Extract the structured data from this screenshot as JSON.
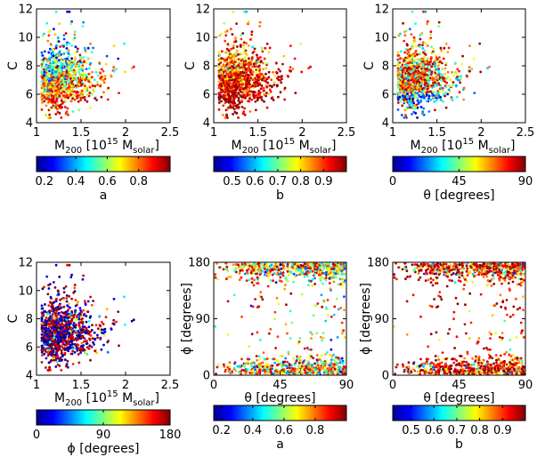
{
  "chart_data": [
    {
      "type": "scatter",
      "panel": "top-left",
      "xlabel": "M",
      "xlabel_sub": "200",
      "xlabel_unit_prefix": "[10",
      "xlabel_unit_exp": "15",
      "xlabel_unit_m": "M",
      "xlabel_unit_sub": "solar",
      "xlabel_unit_end": "]",
      "ylabel": "C",
      "xlim": [
        1,
        2.5
      ],
      "ylim": [
        4,
        12
      ],
      "xticks": [
        "1",
        "1.5",
        "2",
        "2.5"
      ],
      "yticks": [
        "4",
        "6",
        "8",
        "10",
        "12"
      ],
      "color_variable": "a",
      "colorbar_label": "a",
      "colorbar_range": [
        0.15,
        1.0
      ],
      "colorbar_ticks": [
        "0.2",
        "0.4",
        "0.6",
        "0.8"
      ],
      "colorbar_tick_values": [
        0.2,
        0.4,
        0.6,
        0.8
      ],
      "n_points": 900,
      "trend": "large a (red) concentrated at low mass and low concentration (~1.2-1.6, 5-7); small a (blue) at higher concentration and mass"
    },
    {
      "type": "scatter",
      "panel": "top-middle",
      "xlabel": "M",
      "xlabel_sub": "200",
      "xlabel_unit_prefix": "[10",
      "xlabel_unit_exp": "15",
      "xlabel_unit_m": "M",
      "xlabel_unit_sub": "solar",
      "xlabel_unit_end": "]",
      "ylabel": "C",
      "xlim": [
        1,
        2.5
      ],
      "ylim": [
        4,
        12
      ],
      "xticks": [
        "1",
        "1.5",
        "2",
        "2.5"
      ],
      "yticks": [
        "4",
        "6",
        "8",
        "10",
        "12"
      ],
      "color_variable": "b",
      "colorbar_label": "b",
      "colorbar_range": [
        0.42,
        1.0
      ],
      "colorbar_ticks": [
        "0.5",
        "0.6",
        "0.7",
        "0.8",
        "0.9"
      ],
      "colorbar_tick_values": [
        0.5,
        0.6,
        0.7,
        0.8,
        0.9
      ],
      "n_points": 900,
      "trend": "mostly high b (red/dark red) everywhere; a few low-b points at low concentration"
    },
    {
      "type": "scatter",
      "panel": "top-right",
      "xlabel": "M",
      "xlabel_sub": "200",
      "xlabel_unit_prefix": "[10",
      "xlabel_unit_exp": "15",
      "xlabel_unit_m": "M",
      "xlabel_unit_sub": "solar",
      "xlabel_unit_end": "]",
      "ylabel": "C",
      "xlim": [
        1,
        2.5
      ],
      "ylim": [
        4,
        12
      ],
      "xticks": [
        "1",
        "1.5",
        "2",
        "2.5"
      ],
      "yticks": [
        "4",
        "6",
        "8",
        "10",
        "12"
      ],
      "color_variable": "theta",
      "colorbar_label": "θ [degrees]",
      "colorbar_range": [
        0,
        90
      ],
      "colorbar_ticks": [
        "0",
        "45",
        "90"
      ],
      "colorbar_tick_values": [
        0,
        45,
        90
      ],
      "n_points": 900,
      "trend": "small theta (blue) at low concentration (~5-6); large theta (red) at higher concentration"
    },
    {
      "type": "scatter",
      "panel": "bottom-left",
      "xlabel": "M",
      "xlabel_sub": "200",
      "xlabel_unit_prefix": "[10",
      "xlabel_unit_exp": "15",
      "xlabel_unit_m": "M",
      "xlabel_unit_sub": "solar",
      "xlabel_unit_end": "]",
      "ylabel": "C",
      "xlim": [
        1,
        2.5
      ],
      "ylim": [
        4,
        12
      ],
      "xticks": [
        "1",
        "1.5",
        "2",
        "2.5"
      ],
      "yticks": [
        "4",
        "6",
        "8",
        "10",
        "12"
      ],
      "color_variable": "phi",
      "colorbar_label": "ϕ [degrees]",
      "colorbar_range": [
        0,
        180
      ],
      "colorbar_ticks": [
        "0",
        "90",
        "180"
      ],
      "colorbar_tick_values": [
        0,
        90,
        180
      ],
      "n_points": 900,
      "trend": "phi colours mixed; blue and red (phi near 0 or 180) dominate"
    },
    {
      "type": "scatter",
      "panel": "bottom-middle",
      "xlabel": "θ [degrees]",
      "ylabel": "ϕ [degrees]",
      "xlim": [
        0,
        90
      ],
      "ylim": [
        0,
        180
      ],
      "xticks": [
        "0",
        "45",
        "90"
      ],
      "yticks": [
        "0",
        "90",
        "180"
      ],
      "color_variable": "a",
      "colorbar_label": "a",
      "colorbar_range": [
        0.15,
        1.0
      ],
      "colorbar_ticks": [
        "0.2",
        "0.4",
        "0.6",
        "0.8"
      ],
      "colorbar_tick_values": [
        0.2,
        0.4,
        0.6,
        0.8
      ],
      "n_points": 1100,
      "trend": "points cluster near phi = 0 and phi = 180; small theta tends to low a"
    },
    {
      "type": "scatter",
      "panel": "bottom-right",
      "xlabel": "θ [degrees]",
      "ylabel": "ϕ [degrees]",
      "xlim": [
        0,
        90
      ],
      "ylim": [
        0,
        180
      ],
      "xticks": [
        "0",
        "45",
        "90"
      ],
      "yticks": [
        "0",
        "90",
        "180"
      ],
      "color_variable": "b",
      "colorbar_label": "b",
      "colorbar_range": [
        0.42,
        1.0
      ],
      "colorbar_ticks": [
        "0.5",
        "0.6",
        "0.7",
        "0.8",
        "0.9"
      ],
      "colorbar_tick_values": [
        0.5,
        0.6,
        0.7,
        0.8,
        0.9
      ],
      "n_points": 1100,
      "trend": "dense dark-red clusters near phi = 0 and phi = 180 at theta 45-90"
    }
  ]
}
